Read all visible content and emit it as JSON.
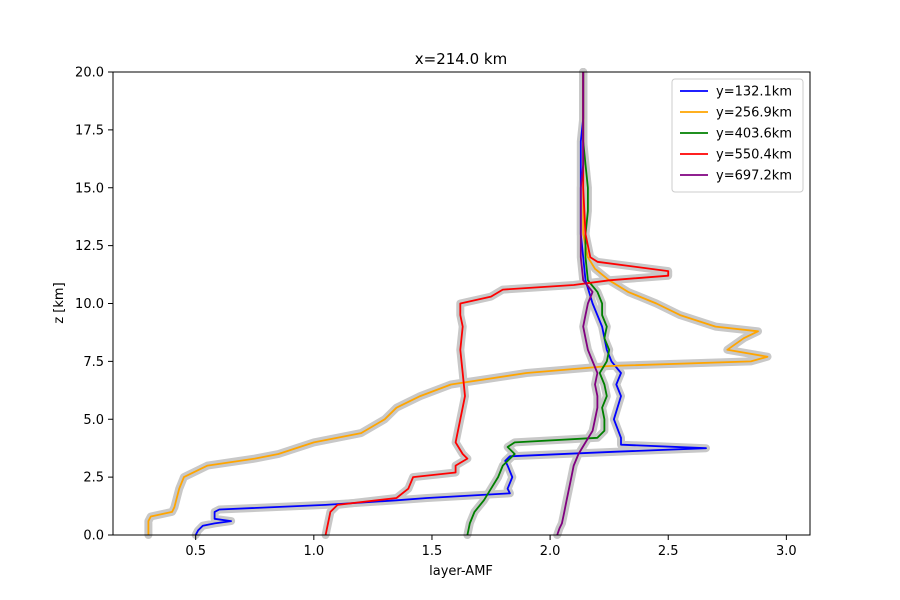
{
  "chart_data": {
    "type": "line",
    "title": "x=214.0 km",
    "xlabel": "layer-AMF",
    "ylabel": "z [km]",
    "xlim": [
      0.15,
      3.1
    ],
    "ylim": [
      0,
      20
    ],
    "xticks": [
      0.5,
      1.0,
      1.5,
      2.0,
      2.5,
      3.0
    ],
    "xtick_labels": [
      "0.5",
      "1.0",
      "1.5",
      "2.0",
      "2.5",
      "3.0"
    ],
    "yticks": [
      0,
      2.5,
      5,
      7.5,
      10,
      12.5,
      15,
      17.5,
      20
    ],
    "ytick_labels": [
      "0.0",
      "2.5",
      "5.0",
      "7.5",
      "10.0",
      "12.5",
      "15.0",
      "17.5",
      "20.0"
    ],
    "grid": false,
    "legend_position": "top-right",
    "uncertainty_band_color": "#c8c8c8",
    "series": [
      {
        "name": "y=132.1km",
        "color": "#0000ff",
        "z": [
          0,
          0.2,
          0.4,
          0.5,
          0.6,
          0.7,
          1.0,
          1.1,
          1.3,
          1.5,
          1.6,
          1.8,
          2.0,
          2.5,
          3.0,
          3.2,
          3.4,
          3.6,
          3.75,
          3.9,
          4.2,
          5.0,
          6.0,
          6.5,
          7.0,
          7.5,
          8.0,
          9.0,
          10.0,
          11.0,
          12.0,
          13.0,
          14.0,
          15.0,
          16.0,
          17.0,
          18.0,
          19.0,
          20.0
        ],
        "x": [
          0.5,
          0.51,
          0.53,
          0.58,
          0.65,
          0.58,
          0.58,
          0.6,
          1.05,
          1.35,
          1.48,
          1.83,
          1.82,
          1.84,
          1.82,
          1.81,
          1.83,
          2.28,
          2.66,
          2.3,
          2.3,
          2.27,
          2.3,
          2.28,
          2.3,
          2.26,
          2.24,
          2.22,
          2.18,
          2.15,
          2.14,
          2.13,
          2.13,
          2.13,
          2.13,
          2.13,
          2.14,
          2.14,
          2.14
        ]
      },
      {
        "name": "y=256.9km",
        "color": "#ffa500",
        "z": [
          0,
          0.3,
          0.6,
          0.8,
          1.0,
          1.2,
          2.0,
          2.5,
          3.0,
          3.3,
          3.5,
          4.0,
          4.4,
          5.0,
          5.5,
          6.0,
          6.5,
          7.0,
          7.3,
          7.5,
          7.7,
          8.0,
          8.5,
          8.8,
          9.0,
          9.5,
          10.0,
          10.5,
          11.0,
          11.5,
          12.0,
          13.0,
          15.0,
          17.5,
          20.0
        ],
        "x": [
          0.3,
          0.3,
          0.3,
          0.31,
          0.4,
          0.41,
          0.43,
          0.45,
          0.55,
          0.75,
          0.85,
          1.0,
          1.2,
          1.3,
          1.35,
          1.45,
          1.58,
          1.9,
          2.25,
          2.85,
          2.92,
          2.75,
          2.82,
          2.88,
          2.7,
          2.55,
          2.45,
          2.33,
          2.25,
          2.19,
          2.16,
          2.14,
          2.14,
          2.14,
          2.14
        ]
      },
      {
        "name": "y=403.6km",
        "color": "#008000",
        "z": [
          0,
          0.5,
          1.0,
          1.5,
          2.0,
          2.5,
          3.0,
          3.5,
          3.8,
          4.0,
          4.2,
          4.5,
          5.0,
          5.5,
          6.0,
          6.5,
          7.0,
          7.5,
          8.0,
          8.5,
          9.0,
          9.5,
          10.0,
          10.5,
          11.0,
          12.0,
          13.0,
          14.0,
          15.0,
          16.0,
          17.0,
          18.0,
          19.0,
          20.0
        ],
        "x": [
          1.65,
          1.66,
          1.68,
          1.72,
          1.75,
          1.78,
          1.8,
          1.85,
          1.82,
          1.85,
          2.2,
          2.23,
          2.23,
          2.22,
          2.24,
          2.23,
          2.21,
          2.24,
          2.25,
          2.23,
          2.24,
          2.22,
          2.22,
          2.2,
          2.16,
          2.15,
          2.15,
          2.16,
          2.16,
          2.15,
          2.14,
          2.14,
          2.14,
          2.14
        ]
      },
      {
        "name": "y=550.4km",
        "color": "#ff0000",
        "z": [
          0,
          0.5,
          1.0,
          1.3,
          1.6,
          2.0,
          2.5,
          2.7,
          3.0,
          3.3,
          3.5,
          4.0,
          5.0,
          6.0,
          7.0,
          8.0,
          9.0,
          9.5,
          10.0,
          10.3,
          10.6,
          10.8,
          11.0,
          11.2,
          11.4,
          11.8,
          12.0,
          13.0,
          15.0,
          17.5,
          20.0
        ],
        "x": [
          1.05,
          1.06,
          1.07,
          1.1,
          1.35,
          1.4,
          1.42,
          1.6,
          1.6,
          1.65,
          1.63,
          1.6,
          1.62,
          1.64,
          1.63,
          1.62,
          1.63,
          1.62,
          1.62,
          1.75,
          1.8,
          2.1,
          2.25,
          2.5,
          2.5,
          2.2,
          2.17,
          2.15,
          2.14,
          2.14,
          2.14
        ]
      },
      {
        "name": "y=697.2km",
        "color": "#800080",
        "z": [
          0,
          0.3,
          0.5,
          1.0,
          1.5,
          2.0,
          2.5,
          3.0,
          3.5,
          4.0,
          4.5,
          5.0,
          5.5,
          6.0,
          6.5,
          7.0,
          7.5,
          8.0,
          8.5,
          9.0,
          9.5,
          10.0,
          10.5,
          11.0,
          12.0,
          13.0,
          14.0,
          15.0,
          16.0,
          17.0,
          18.0,
          19.0,
          20.0
        ],
        "x": [
          2.03,
          2.04,
          2.05,
          2.06,
          2.07,
          2.08,
          2.09,
          2.1,
          2.12,
          2.15,
          2.18,
          2.19,
          2.2,
          2.2,
          2.19,
          2.2,
          2.18,
          2.16,
          2.15,
          2.14,
          2.15,
          2.16,
          2.18,
          2.14,
          2.13,
          2.13,
          2.13,
          2.13,
          2.14,
          2.14,
          2.14,
          2.14,
          2.14
        ]
      }
    ]
  }
}
